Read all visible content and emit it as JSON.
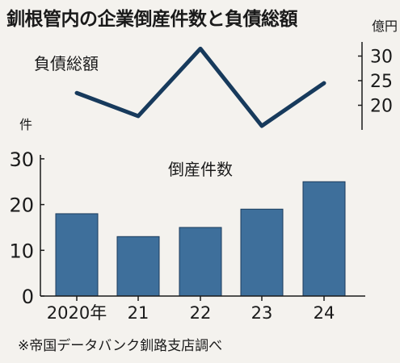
{
  "title": "釧根管内の企業倒産件数と負債総額",
  "source": "※帝国データバンク釧路支店調べ",
  "colors": {
    "bar": "#3e6f9b",
    "bar_edge": "#1b3b5c",
    "line": "#173a5c",
    "text": "#1a1a1a",
    "background": "#f4f2ee"
  },
  "chart_data": [
    {
      "type": "line",
      "title": "負債総額",
      "y_unit": "億円",
      "x": [
        "2020",
        "21",
        "22",
        "23",
        "24"
      ],
      "series": [
        {
          "name": "負債総額",
          "values": [
            22.5,
            17.8,
            31.5,
            15.8,
            24.5
          ]
        }
      ],
      "yticks": [
        20,
        25,
        30
      ],
      "ylim": [
        15,
        32
      ],
      "axis_side": "right",
      "grid": false
    },
    {
      "type": "bar",
      "title": "倒産件数",
      "y_unit": "件",
      "categories": [
        "2020年",
        "21",
        "22",
        "23",
        "24"
      ],
      "series": [
        {
          "name": "倒産件数",
          "values": [
            18,
            13,
            15,
            19,
            25
          ]
        }
      ],
      "yticks": [
        0,
        10,
        20,
        30
      ],
      "ylim": [
        0,
        30
      ],
      "grid": false
    }
  ]
}
